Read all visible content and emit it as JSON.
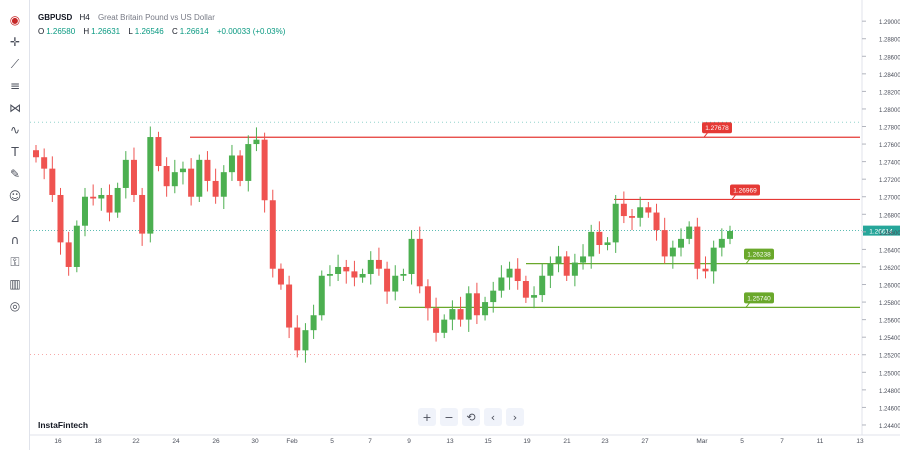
{
  "header": {
    "symbol": "GBPUSD",
    "timeframe": "H4",
    "description": "Great Britain Pound vs US Dollar",
    "open_label": "O",
    "open": "1.26580",
    "high_label": "H",
    "high": "1.26631",
    "low_label": "L",
    "low": "1.26546",
    "close_label": "C",
    "close": "1.26614",
    "change": "+0.00033 (+0.03%)"
  },
  "brand": "InstaFintech",
  "toolbar": {
    "icons": [
      "flag-logo-icon",
      "crosshair-icon",
      "trend-line-icon",
      "fib-icon",
      "pattern-icon",
      "brush-icon",
      "text-icon",
      "pencil-icon",
      "emoji-icon",
      "measure-icon",
      "magnet-icon",
      "lock-icon",
      "trash-icon",
      "eye-icon"
    ]
  },
  "nav": {
    "zoom_in": "+",
    "zoom_out": "−",
    "reset": "⟲",
    "back": "‹",
    "forward": "›"
  },
  "colors": {
    "up": "#26a69a",
    "up_fill": "#4caf50",
    "down": "#ef5350",
    "resistance": "#e53935",
    "support": "#6aa82b",
    "last_price": "#26a69a"
  },
  "chart_data": {
    "type": "candlestick",
    "symbol": "GBPUSD",
    "timeframe": "H4",
    "ylim": [
      1.2432,
      1.2915
    ],
    "y_ticks": [
      "1.29000",
      "1.28800",
      "1.28600",
      "1.28400",
      "1.28200",
      "1.28000",
      "1.27800",
      "1.27600",
      "1.27400",
      "1.27200",
      "1.27000",
      "1.26800",
      "1.26600",
      "1.26400",
      "1.26200",
      "1.26000",
      "1.25800",
      "1.25600",
      "1.25400",
      "1.25200",
      "1.25000",
      "1.24800",
      "1.24600",
      "1.24400"
    ],
    "x_ticks": [
      "16",
      "18",
      "22",
      "24",
      "26",
      "30",
      "Feb",
      "5",
      "7",
      "9",
      "13",
      "15",
      "19",
      "21",
      "23",
      "27",
      "Mar",
      "5",
      "7",
      "11",
      "13"
    ],
    "last_price": "1.26614",
    "horizontal_levels": [
      {
        "value": 1.27678,
        "label": "1.27678",
        "kind": "resistance"
      },
      {
        "value": 1.26969,
        "label": "1.26969",
        "kind": "resistance"
      },
      {
        "value": 1.26238,
        "label": "1.26238",
        "kind": "support"
      },
      {
        "value": 1.2574,
        "label": "1.25740",
        "kind": "support"
      }
    ],
    "close_path": [
      1.2745,
      1.2732,
      1.2702,
      1.2648,
      1.262,
      1.2667,
      1.27,
      1.2698,
      1.2702,
      1.2682,
      1.271,
      1.2742,
      1.2702,
      1.2658,
      1.2768,
      1.2735,
      1.2712,
      1.2728,
      1.2732,
      1.27,
      1.2742,
      1.2718,
      1.27,
      1.2728,
      1.2747,
      1.2718,
      1.276,
      1.2765,
      1.2696,
      1.2618,
      1.26,
      1.2551,
      1.2525,
      1.2548,
      1.2565,
      1.261,
      1.2612,
      1.262,
      1.2615,
      1.2608,
      1.2612,
      1.2628,
      1.2618,
      1.2592,
      1.261,
      1.2612,
      1.2652,
      1.2598,
      1.2573,
      1.2545,
      1.256,
      1.2572,
      1.256,
      1.259,
      1.2565,
      1.258,
      1.2593,
      1.2608,
      1.2618,
      1.2604,
      1.2585,
      1.2588,
      1.261,
      1.2624,
      1.2632,
      1.261,
      1.2625,
      1.2632,
      1.266,
      1.2645,
      1.2648,
      1.2692,
      1.2678,
      1.2676,
      1.2688,
      1.2682,
      1.2662,
      1.2632,
      1.2642,
      1.2652,
      1.2666,
      1.2618,
      1.2615,
      1.2642,
      1.2652,
      1.2661
    ],
    "x_range_candles": [
      0,
      86
    ]
  }
}
